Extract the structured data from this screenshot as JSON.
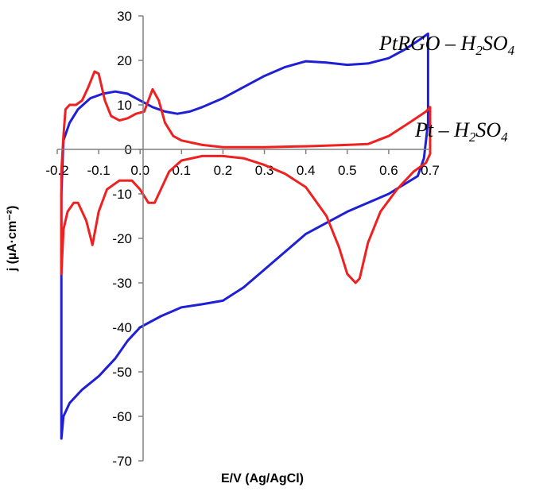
{
  "chart_data": {
    "type": "line",
    "title": "",
    "xlabel": "E/V (Ag/AgCl)",
    "ylabel": "j (µA·cm⁻²)",
    "xlim": [
      -0.2,
      0.7
    ],
    "ylim": [
      -70,
      30
    ],
    "x_ticks": [
      -0.2,
      -0.1,
      0.0,
      0.1,
      0.2,
      0.3,
      0.4,
      0.5,
      0.6,
      0.7
    ],
    "x_tick_labels": [
      "-0.2",
      "-0.1",
      "0.0",
      "0.1",
      "0.2",
      "0.3",
      "0.4",
      "0.5",
      "0.6",
      "0.7"
    ],
    "y_ticks": [
      -70,
      -60,
      -50,
      -40,
      -30,
      -20,
      -10,
      0,
      10,
      20,
      30
    ],
    "y_tick_labels": [
      "-70",
      "-60",
      "-50",
      "-40",
      "-30",
      "-20",
      "-10",
      "0",
      "10",
      "20",
      "30"
    ],
    "grid": false,
    "legend": "inline labels",
    "series": [
      {
        "name_parts": [
          "PtRGO – H",
          "2",
          "SO",
          "4"
        ],
        "color": "#1f1fd6",
        "points": [
          [
            -0.19,
            -65
          ],
          [
            -0.19,
            -10
          ],
          [
            -0.185,
            2
          ],
          [
            -0.17,
            6
          ],
          [
            -0.15,
            9
          ],
          [
            -0.12,
            11.5
          ],
          [
            -0.09,
            12.5
          ],
          [
            -0.06,
            13
          ],
          [
            -0.03,
            12.5
          ],
          [
            0.0,
            11
          ],
          [
            0.03,
            9.5
          ],
          [
            0.06,
            8.5
          ],
          [
            0.09,
            8
          ],
          [
            0.12,
            8.5
          ],
          [
            0.15,
            9.5
          ],
          [
            0.2,
            11.5
          ],
          [
            0.25,
            14
          ],
          [
            0.3,
            16.5
          ],
          [
            0.35,
            18.5
          ],
          [
            0.4,
            19.8
          ],
          [
            0.45,
            19.5
          ],
          [
            0.5,
            19
          ],
          [
            0.55,
            19.3
          ],
          [
            0.6,
            20.5
          ],
          [
            0.64,
            22.5
          ],
          [
            0.68,
            25
          ],
          [
            0.695,
            26
          ],
          [
            0.695,
            6
          ],
          [
            0.69,
            2
          ],
          [
            0.685,
            -2
          ],
          [
            0.67,
            -6
          ],
          [
            0.6,
            -10
          ],
          [
            0.5,
            -14
          ],
          [
            0.4,
            -19
          ],
          [
            0.3,
            -27
          ],
          [
            0.25,
            -31
          ],
          [
            0.2,
            -34
          ],
          [
            0.15,
            -34.8
          ],
          [
            0.1,
            -35.5
          ],
          [
            0.05,
            -37.5
          ],
          [
            0.0,
            -40
          ],
          [
            -0.03,
            -43
          ],
          [
            -0.06,
            -47
          ],
          [
            -0.1,
            -51
          ],
          [
            -0.14,
            -54
          ],
          [
            -0.17,
            -57
          ],
          [
            -0.185,
            -60
          ],
          [
            -0.19,
            -65
          ]
        ]
      },
      {
        "name_parts": [
          "Pt – H",
          "2",
          "SO",
          "4"
        ],
        "color": "#ee2020",
        "points": [
          [
            -0.19,
            -28
          ],
          [
            -0.19,
            -5
          ],
          [
            -0.185,
            3
          ],
          [
            -0.18,
            9
          ],
          [
            -0.17,
            10
          ],
          [
            -0.155,
            10
          ],
          [
            -0.14,
            11
          ],
          [
            -0.125,
            14
          ],
          [
            -0.11,
            17.5
          ],
          [
            -0.1,
            17
          ],
          [
            -0.085,
            11
          ],
          [
            -0.07,
            7.5
          ],
          [
            -0.05,
            6.5
          ],
          [
            -0.03,
            7
          ],
          [
            -0.01,
            8
          ],
          [
            0.01,
            8.5
          ],
          [
            0.02,
            11
          ],
          [
            0.03,
            13.5
          ],
          [
            0.045,
            11
          ],
          [
            0.06,
            6
          ],
          [
            0.08,
            3
          ],
          [
            0.1,
            2
          ],
          [
            0.15,
            1
          ],
          [
            0.2,
            0.5
          ],
          [
            0.3,
            0.5
          ],
          [
            0.4,
            0.7
          ],
          [
            0.5,
            1
          ],
          [
            0.55,
            1.2
          ],
          [
            0.6,
            3
          ],
          [
            0.65,
            6
          ],
          [
            0.69,
            8.5
          ],
          [
            0.7,
            9.5
          ],
          [
            0.7,
            -1
          ],
          [
            0.69,
            -3
          ],
          [
            0.66,
            -5
          ],
          [
            0.62,
            -9
          ],
          [
            0.58,
            -14
          ],
          [
            0.55,
            -21
          ],
          [
            0.53,
            -29
          ],
          [
            0.52,
            -30
          ],
          [
            0.5,
            -28
          ],
          [
            0.48,
            -22
          ],
          [
            0.45,
            -15
          ],
          [
            0.4,
            -8.5
          ],
          [
            0.35,
            -5.5
          ],
          [
            0.3,
            -3.5
          ],
          [
            0.25,
            -2
          ],
          [
            0.2,
            -1.5
          ],
          [
            0.15,
            -1.5
          ],
          [
            0.1,
            -2.5
          ],
          [
            0.07,
            -5
          ],
          [
            0.05,
            -9
          ],
          [
            0.035,
            -12
          ],
          [
            0.02,
            -12
          ],
          [
            0.0,
            -9
          ],
          [
            -0.02,
            -7
          ],
          [
            -0.05,
            -7
          ],
          [
            -0.08,
            -9
          ],
          [
            -0.1,
            -14
          ],
          [
            -0.115,
            -21.5
          ],
          [
            -0.13,
            -16
          ],
          [
            -0.15,
            -12
          ],
          [
            -0.16,
            -12
          ],
          [
            -0.175,
            -14
          ],
          [
            -0.185,
            -18
          ],
          [
            -0.19,
            -28
          ]
        ]
      }
    ]
  }
}
